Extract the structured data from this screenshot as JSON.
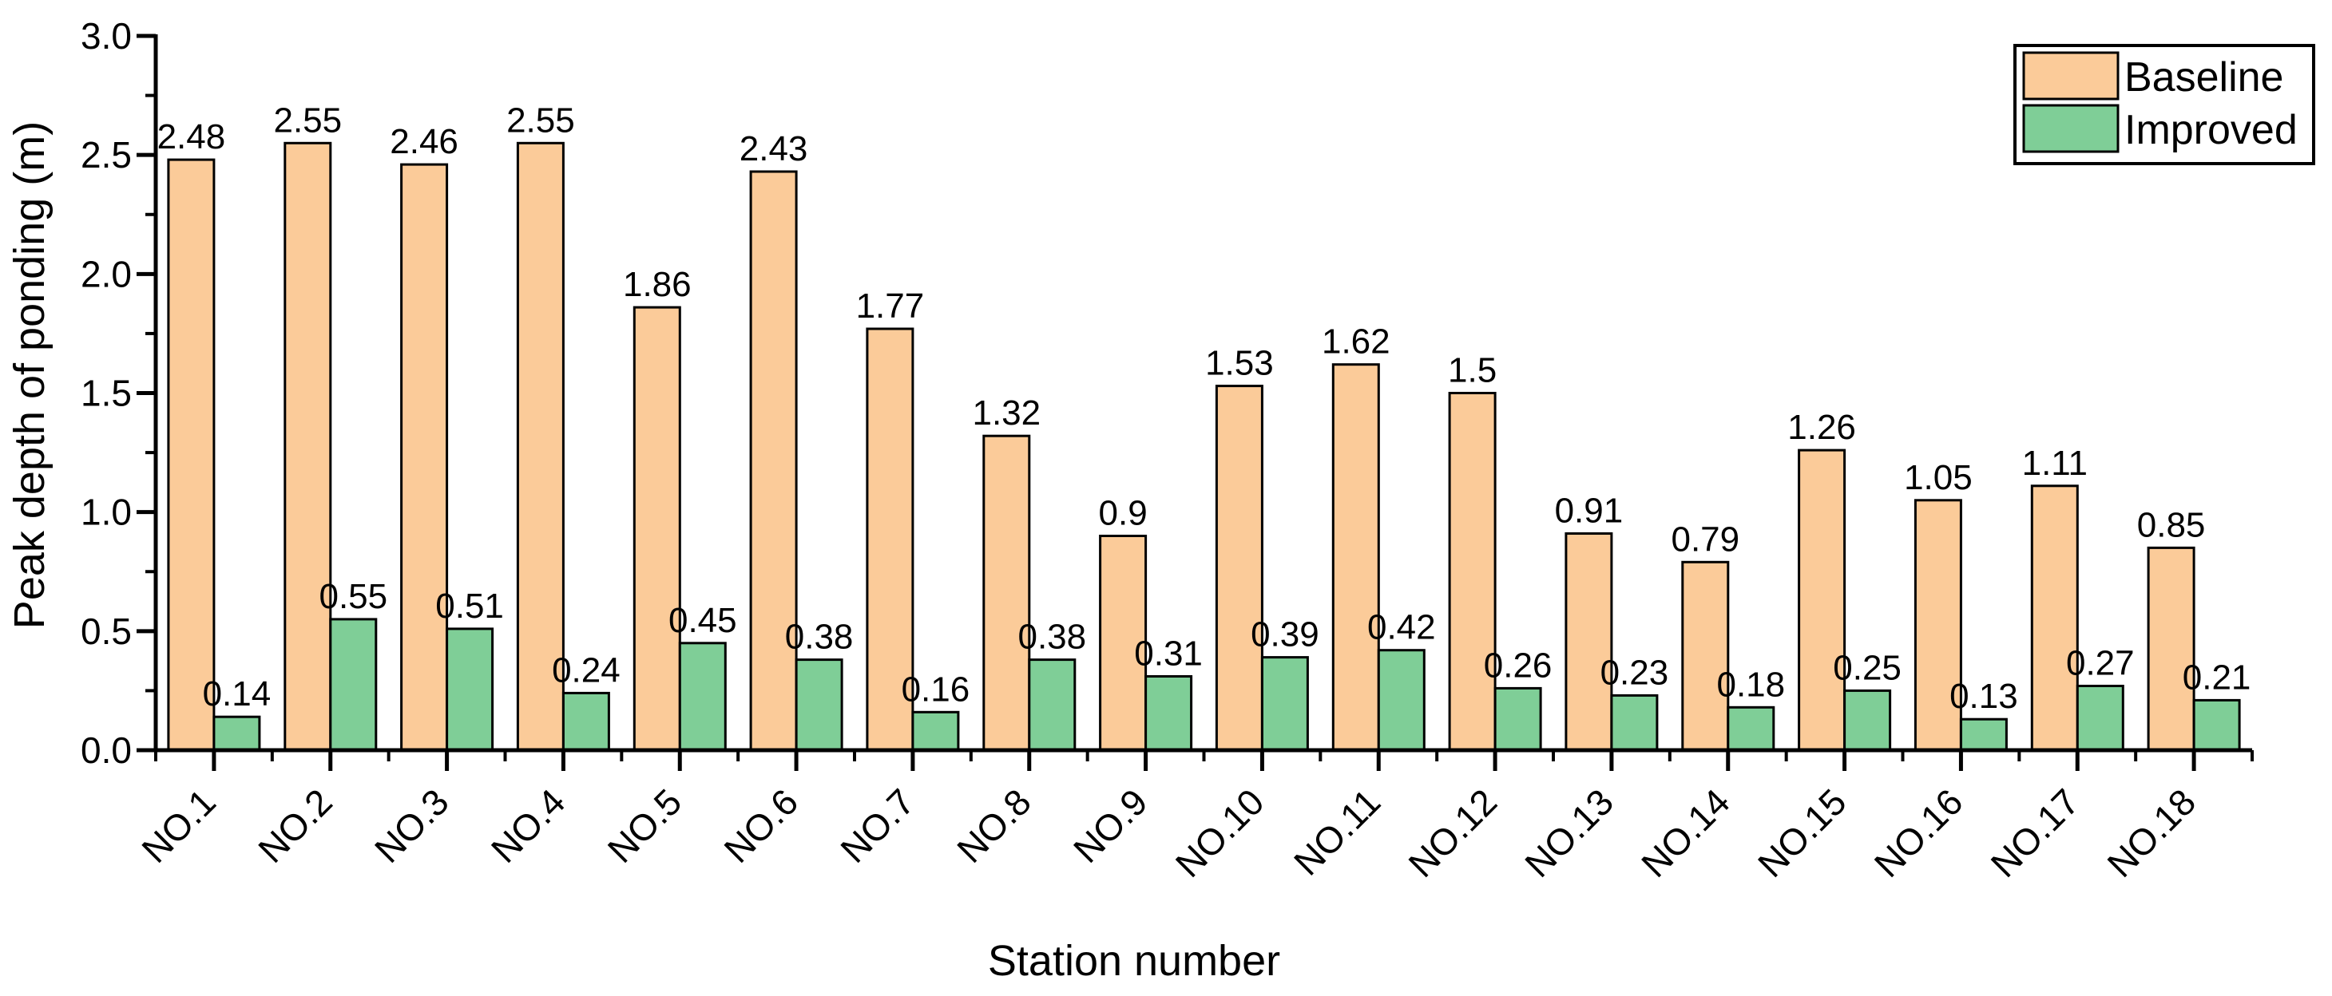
{
  "figure": {
    "background": "#FFFFFF",
    "axis_color": "#000000",
    "y_tick_labels": [
      "0.0",
      "0.5",
      "1.0",
      "1.5",
      "2.0",
      "2.5",
      "3.0"
    ]
  },
  "legend": {
    "position": "top-right",
    "border_color": "#000000",
    "items": [
      {
        "label": "Baseline",
        "color": "#FBCB99"
      },
      {
        "label": "Improved",
        "color": "#7FCE97"
      }
    ]
  },
  "chart_data": {
    "type": "bar",
    "title": "",
    "xlabel": "Station number",
    "ylabel": "Peak depth of ponding (m)",
    "ylim": [
      0.0,
      3.0
    ],
    "y_major_step": 0.5,
    "y_minor_step": 0.25,
    "grid": false,
    "legend_position": "top-right",
    "bar_edge_color": "#000000",
    "categories": [
      "NO.1",
      "NO.2",
      "NO.3",
      "NO.4",
      "NO.5",
      "NO.6",
      "NO.7",
      "NO.8",
      "NO.9",
      "NO.10",
      "NO.11",
      "NO.12",
      "NO.13",
      "NO.14",
      "NO.15",
      "NO.16",
      "NO.17",
      "NO.18"
    ],
    "series": [
      {
        "name": "Baseline",
        "color": "#FBCB99",
        "values": [
          2.48,
          2.55,
          2.46,
          2.55,
          1.86,
          2.43,
          1.77,
          1.32,
          0.9,
          1.53,
          1.62,
          1.5,
          0.91,
          0.79,
          1.26,
          1.05,
          1.11,
          0.85
        ],
        "labels": [
          "2.48",
          "2.55",
          "2.46",
          "2.55",
          "1.86",
          "2.43",
          "1.77",
          "1.32",
          "0.9",
          "1.53",
          "1.62",
          "1.5",
          "0.91",
          "0.79",
          "1.26",
          "1.05",
          "1.11",
          "0.85"
        ]
      },
      {
        "name": "Improved",
        "color": "#7FCE97",
        "values": [
          0.14,
          0.55,
          0.51,
          0.24,
          0.45,
          0.38,
          0.16,
          0.38,
          0.31,
          0.39,
          0.42,
          0.26,
          0.23,
          0.18,
          0.25,
          0.13,
          0.27,
          0.21
        ],
        "labels": [
          "0.14",
          "0.55",
          "0.51",
          "0.24",
          "0.45",
          "0.38",
          "0.16",
          "0.38",
          "0.31",
          "0.39",
          "0.42",
          "0.26",
          "0.23",
          "0.18",
          "0.25",
          "0.13",
          "0.27",
          "0.21"
        ]
      }
    ]
  }
}
